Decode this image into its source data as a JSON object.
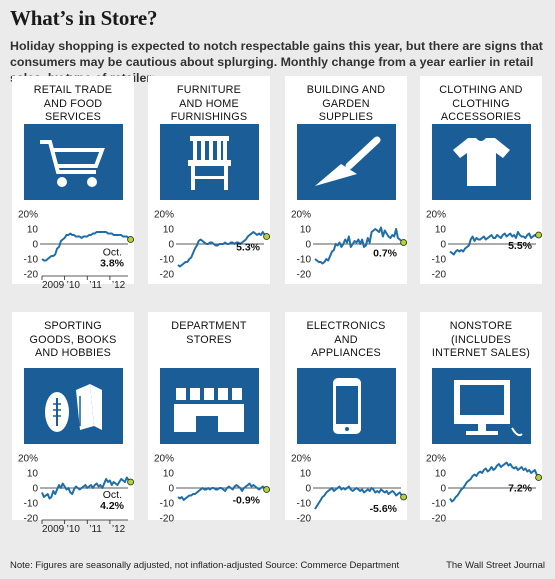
{
  "headline": "What’s in Store?",
  "subtitle": "Holiday shopping is expected to notch respectable gains this year, but there are signs that consumers may be cautious about splurging. Monthly change from a year earlier in retail sales, by type of retailer:",
  "footer": {
    "note": "Note: Figures are seasonally adjusted, not inflation-adjusted   Source: Commerce Department",
    "source": "The Wall Street Journal"
  },
  "colors": {
    "line": "#1f6ea8",
    "icon_bg": "#1a5d97",
    "endpoint": "#b3d334",
    "panel_bg": "#ffffff",
    "page_bg": "#ebebeb"
  },
  "panels": [
    {
      "label_lines": [
        "Retail trade",
        "and food",
        "services"
      ],
      "icon": "shopping-cart-icon",
      "final_value": "3.8%",
      "final_month": "Oct."
    },
    {
      "label_lines": [
        "Furniture",
        "and home",
        "furnishings"
      ],
      "icon": "chair-icon",
      "final_value": "5.3%",
      "final_month": ""
    },
    {
      "label_lines": [
        "Building and",
        "garden",
        "supplies"
      ],
      "icon": "trowel-icon",
      "final_value": "0.7%",
      "final_month": ""
    },
    {
      "label_lines": [
        "Clothing and",
        "clothing",
        "accessories"
      ],
      "icon": "t-shirt-icon",
      "final_value": "5.5%",
      "final_month": ""
    },
    {
      "label_lines": [
        "Sporting",
        "goods, books",
        "and hobbies"
      ],
      "icon": "football-and-books-icon",
      "final_value": "4.2%",
      "final_month": "Oct."
    },
    {
      "label_lines": [
        "Department",
        "stores"
      ],
      "icon": "department-store-icon",
      "final_value": "-0.9%",
      "final_month": ""
    },
    {
      "label_lines": [
        "Electronics",
        "and",
        "appliances"
      ],
      "icon": "smartphone-icon",
      "final_value": "-5.6%",
      "final_month": ""
    },
    {
      "label_lines": [
        "Nonstore",
        "(includes",
        "internet sales)"
      ],
      "icon": "computer-monitor-icon",
      "final_value": "7.2%",
      "final_month": ""
    }
  ],
  "chart_data": {
    "type": "line",
    "title": "Monthly change from a year earlier in retail sales, by type of retailer",
    "xlabel": "",
    "ylabel": "",
    "y_ticks": [
      "20%",
      "10",
      "0",
      "-10",
      "-20"
    ],
    "x_ticks": [
      "2009",
      "’10",
      "’11",
      "’12"
    ],
    "ylim": [
      -20,
      20
    ],
    "xlim": [
      2009.0,
      2012.8
    ],
    "x_start": 2009.0,
    "x_step": 0.0833,
    "series": [
      {
        "name": "Retail trade and food services",
        "final": 3.8,
        "values": [
          -10,
          -11,
          -11,
          -10,
          -9,
          -8,
          -8,
          -7,
          -3,
          -2,
          2,
          3,
          4,
          6,
          6,
          7,
          6,
          6,
          5,
          5,
          5,
          4,
          5,
          5,
          5,
          6,
          6,
          7,
          7,
          8,
          8,
          8,
          8,
          8,
          8,
          7,
          7,
          7,
          6,
          6,
          6,
          6,
          6,
          5,
          5,
          5,
          4,
          3
        ]
      },
      {
        "name": "Furniture and home furnishings",
        "final": 5.3,
        "values": [
          -14,
          -15,
          -14,
          -13,
          -12,
          -12,
          -10,
          -9,
          -6,
          -3,
          -1,
          2,
          3,
          2,
          1,
          0,
          0,
          1,
          1,
          0,
          -1,
          -1,
          0,
          0,
          0,
          1,
          0,
          0,
          1,
          1,
          0,
          1,
          1,
          0,
          1,
          2,
          3,
          5,
          6,
          7,
          8,
          7,
          6,
          7,
          6,
          8,
          6,
          5
        ]
      },
      {
        "name": "Building and garden supplies",
        "final": 0.7,
        "values": [
          -10,
          -11,
          -12,
          -12,
          -13,
          -12,
          -10,
          -11,
          -8,
          -5,
          -4,
          0,
          -1,
          1,
          -2,
          0,
          3,
          1,
          5,
          -2,
          0,
          2,
          1,
          3,
          0,
          3,
          -2,
          -1,
          4,
          1,
          8,
          9,
          10,
          9,
          8,
          11,
          5,
          9,
          7,
          5,
          4,
          6,
          5,
          10,
          4,
          3,
          2,
          1
        ]
      },
      {
        "name": "Clothing and clothing accessories",
        "final": 5.5,
        "values": [
          -5,
          -6,
          -7,
          -5,
          -4,
          -5,
          -4,
          -5,
          -3,
          -2,
          -1,
          3,
          5,
          2,
          4,
          3,
          3,
          4,
          5,
          3,
          4,
          5,
          6,
          4,
          4,
          6,
          5,
          4,
          6,
          7,
          5,
          6,
          7,
          5,
          6,
          4,
          8,
          6,
          5,
          5,
          4,
          6,
          7,
          4,
          5,
          6,
          5,
          6
        ]
      },
      {
        "name": "Sporting goods, books and hobbies",
        "final": 4.2,
        "values": [
          -3,
          -6,
          -5,
          -4,
          -7,
          -6,
          -2,
          -4,
          -1,
          2,
          0,
          3,
          1,
          -1,
          0,
          -3,
          -4,
          -1,
          1,
          0,
          -1,
          0,
          1,
          2,
          0,
          1,
          2,
          0,
          2,
          3,
          1,
          2,
          0,
          3,
          6,
          4,
          5,
          2,
          4,
          3,
          2,
          4,
          6,
          5,
          4,
          7,
          5,
          4
        ]
      },
      {
        "name": "Department stores",
        "final": -0.9,
        "values": [
          -6,
          -7,
          -6,
          -8,
          -7,
          -6,
          -5,
          -5,
          -4,
          -4,
          -3,
          -2,
          -1,
          0,
          -1,
          -1,
          0,
          -1,
          0,
          0,
          -1,
          -1,
          0,
          0,
          -1,
          -2,
          0,
          1,
          0,
          -1,
          1,
          2,
          1,
          0,
          -2,
          0,
          1,
          2,
          3,
          1,
          2,
          1,
          0,
          -1,
          0,
          1,
          0,
          -1
        ]
      },
      {
        "name": "Electronics and appliances",
        "final": -5.6,
        "values": [
          -14,
          -12,
          -10,
          -8,
          -6,
          -5,
          -3,
          -2,
          -1,
          0,
          -2,
          -1,
          0,
          1,
          -1,
          0,
          -1,
          0,
          1,
          -1,
          -2,
          -1,
          0,
          -1,
          -2,
          -1,
          -3,
          -2,
          -1,
          -2,
          0,
          -1,
          -3,
          -2,
          -3,
          -1,
          -2,
          -3,
          -2,
          -4,
          -3,
          -2,
          -3,
          -5,
          -4,
          -3,
          -5,
          -6
        ]
      },
      {
        "name": "Nonstore (includes internet sales)",
        "final": 7.2,
        "values": [
          -7,
          -9,
          -8,
          -6,
          -5,
          -3,
          -1,
          0,
          2,
          4,
          5,
          6,
          8,
          9,
          8,
          10,
          11,
          10,
          12,
          13,
          11,
          12,
          14,
          12,
          13,
          15,
          16,
          14,
          15,
          16,
          17,
          15,
          16,
          14,
          13,
          14,
          12,
          13,
          14,
          12,
          13,
          11,
          12,
          10,
          11,
          12,
          9,
          7
        ]
      }
    ]
  }
}
